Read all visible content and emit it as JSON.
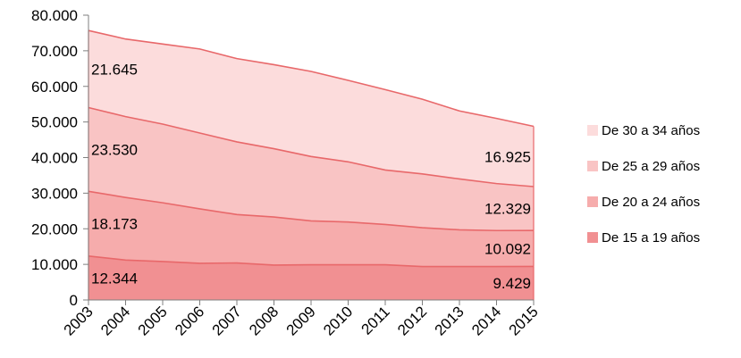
{
  "chart_data": {
    "type": "area",
    "stacked": true,
    "categories": [
      "2003",
      "2004",
      "2005",
      "2006",
      "2007",
      "2008",
      "2009",
      "2010",
      "2011",
      "2012",
      "2013",
      "2014",
      "2015"
    ],
    "y_ticks": [
      "0",
      "10.000",
      "20.000",
      "30.000",
      "40.000",
      "50.000",
      "60.000",
      "70.000",
      "80.000"
    ],
    "ylim": [
      0,
      80000
    ],
    "grid": false,
    "legend_position": "right",
    "series": [
      {
        "name": "De 15 a 19 años",
        "color": "#f19092",
        "values": [
          12344,
          11200,
          10800,
          10300,
          10400,
          9800,
          9900,
          9900,
          9900,
          9400,
          9400,
          9400,
          9429
        ]
      },
      {
        "name": "De 20 a 24 años",
        "color": "#f6acac",
        "values": [
          18173,
          17600,
          16500,
          15300,
          13600,
          13500,
          12300,
          12000,
          11300,
          10900,
          10300,
          10100,
          10092
        ]
      },
      {
        "name": "De 25 a 29 años",
        "color": "#f9c4c4",
        "values": [
          23530,
          22700,
          22100,
          21300,
          20400,
          19200,
          18100,
          16900,
          15300,
          15100,
          14300,
          13200,
          12329
        ]
      },
      {
        "name": "De 30 a 34 años",
        "color": "#fcdcdc",
        "values": [
          21645,
          21800,
          22500,
          23600,
          23400,
          23600,
          23900,
          22900,
          22600,
          21000,
          19100,
          18300,
          16925
        ]
      }
    ],
    "data_labels": [
      {
        "series": 0,
        "first": "12.344",
        "last": "9.429"
      },
      {
        "series": 1,
        "first": "18.173",
        "last": "10.092"
      },
      {
        "series": 2,
        "first": "23.530",
        "last": "12.329"
      },
      {
        "series": 3,
        "first": "21.645",
        "last": "16.925"
      }
    ],
    "line_color": "#e8686a"
  }
}
